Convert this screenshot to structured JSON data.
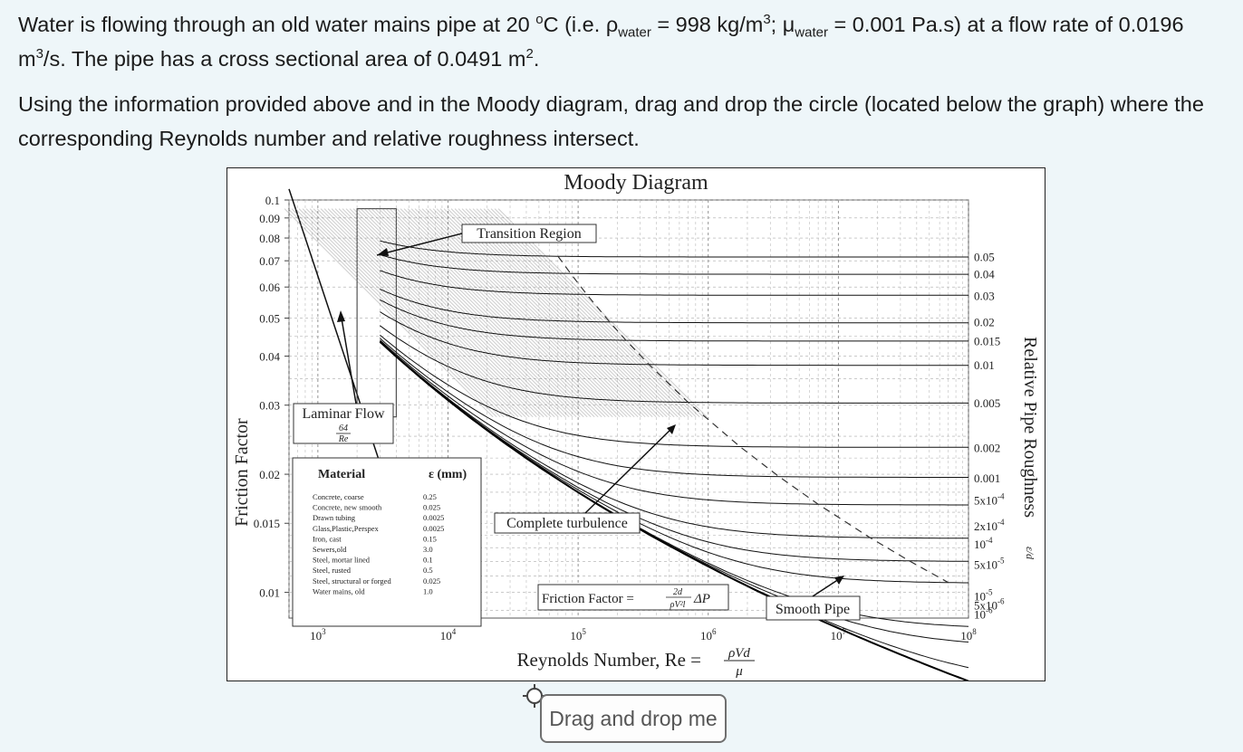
{
  "question": {
    "line1_a": "Water is flowing through an old water mains pipe at 20 ",
    "degree": "o",
    "line1_b": "C (i.e. ρ",
    "sub_water_1": "water",
    "line1_c": " = 998 kg/m",
    "cube_1": "3",
    "line1_d": "; μ",
    "sub_water_2": "water",
    "line1_e": " = 0.001 Pa.s) at a flow rate of 0.0196 m",
    "cube_2": "3",
    "line1_f": "/s. The pipe has a cross sectional area of 0.0491 m",
    "square": "2",
    "line1_g": ".",
    "instructions": "Using the information provided above and in the Moody diagram, drag and drop the circle (located below the graph) where the corresponding Reynolds number and relative roughness intersect."
  },
  "drag_button": {
    "label": "Drag and drop me"
  },
  "icons": {
    "drag_handle": "move-target-icon"
  },
  "chart_data": {
    "type": "line",
    "title": "Moody Diagram",
    "xlabel_text": "Reynolds Number, Re =",
    "xlabel_formula_num": "ρVd",
    "xlabel_formula_den": "μ",
    "ylabel": "Friction Factor",
    "y2label": "Relative Pipe Roughness",
    "y2label_symbol": "ε/d",
    "x_scale": "log",
    "y_scale": "log",
    "xlim": [
      600,
      100000000
    ],
    "ylim": [
      0.0086,
      0.1
    ],
    "x_ticks": [
      {
        "value": 1000,
        "base": "10",
        "exp": "3"
      },
      {
        "value": 10000,
        "base": "10",
        "exp": "4"
      },
      {
        "value": 100000,
        "base": "10",
        "exp": "5"
      },
      {
        "value": 1000000,
        "base": "10",
        "exp": "6"
      },
      {
        "value": 10000000,
        "base": "10",
        "exp": "7"
      },
      {
        "value": 100000000,
        "base": "10",
        "exp": "8"
      }
    ],
    "y_ticks": [
      {
        "value": 0.1,
        "label": "0.1"
      },
      {
        "value": 0.09,
        "label": "0.09"
      },
      {
        "value": 0.08,
        "label": "0.08"
      },
      {
        "value": 0.07,
        "label": "0.07"
      },
      {
        "value": 0.06,
        "label": "0.06"
      },
      {
        "value": 0.05,
        "label": "0.05"
      },
      {
        "value": 0.04,
        "label": "0.04"
      },
      {
        "value": 0.03,
        "label": "0.03"
      },
      {
        "value": 0.02,
        "label": "0.02"
      },
      {
        "value": 0.015,
        "label": "0.015"
      },
      {
        "value": 0.01,
        "label": "0.01"
      }
    ],
    "grid": true,
    "roughness_curves": [
      {
        "label": "0.05",
        "eps": 0.05,
        "y_label_value": 0.0718
      },
      {
        "label": "0.04",
        "eps": 0.04,
        "y_label_value": 0.0649
      },
      {
        "label": "0.03",
        "eps": 0.03,
        "y_label_value": 0.0571
      },
      {
        "label": "0.02",
        "eps": 0.02,
        "y_label_value": 0.049
      },
      {
        "label": "0.015",
        "eps": 0.015,
        "y_label_value": 0.0438
      },
      {
        "label": "0.01",
        "eps": 0.01,
        "y_label_value": 0.038
      },
      {
        "label": "0.005",
        "eps": 0.005,
        "y_label_value": 0.0304
      },
      {
        "label": "0.002",
        "eps": 0.002,
        "y_label_value": 0.0234
      },
      {
        "label": "0.001",
        "eps": 0.001,
        "y_label_value": 0.0196
      },
      {
        "label": "5x10",
        "exp": "-4",
        "eps": 0.0005,
        "y_label_value": 0.0172
      },
      {
        "label": "2x10",
        "exp": "-4",
        "eps": 0.0002,
        "y_label_value": 0.0148
      },
      {
        "label": "10",
        "exp": "-4",
        "eps": 0.0001,
        "y_label_value": 0.0133
      },
      {
        "label": "5x10",
        "exp": "-5",
        "eps": 5e-05,
        "y_label_value": 0.0118
      },
      {
        "label": "10",
        "exp": "-5",
        "eps": 1e-05,
        "y_label_value": 0.0098
      },
      {
        "label": "5x10",
        "exp": "-6",
        "eps": 5e-06,
        "y_label_value": 0.0093
      },
      {
        "label": "10",
        "exp": "-6",
        "eps": 1e-06,
        "y_label_value": 0.0088
      }
    ],
    "laminar": {
      "label": "Laminar Flow",
      "formula_num": "64",
      "formula_den": "Re",
      "re_range": [
        600,
        3000
      ]
    },
    "transition_region": {
      "label": "Transition Region",
      "re_range": [
        2000,
        4000
      ]
    },
    "annotations": {
      "complete_turbulence": "Complete turbulence",
      "friction_factor_prefix": "Friction Factor =",
      "friction_factor_frac_num": "2d",
      "friction_factor_frac_den": "ρV²l",
      "friction_factor_suffix": "ΔP",
      "smooth_pipe": "Smooth Pipe"
    },
    "material_table": {
      "header_material": "Material",
      "header_eps": "ε (mm)",
      "rows": [
        {
          "material": "Concrete, coarse",
          "eps": "0.25"
        },
        {
          "material": "Concrete, new smooth",
          "eps": "0.025"
        },
        {
          "material": "Drawn tubing",
          "eps": "0.0025"
        },
        {
          "material": "Glass,Plastic,Perspex",
          "eps": "0.0025"
        },
        {
          "material": "Iron, cast",
          "eps": "0.15"
        },
        {
          "material": "Sewers,old",
          "eps": "3.0"
        },
        {
          "material": "Steel, mortar lined",
          "eps": "0.1"
        },
        {
          "material": "Steel, rusted",
          "eps": "0.5"
        },
        {
          "material": "Steel, structural or forged",
          "eps": "0.025"
        },
        {
          "material": "Water mains, old",
          "eps": "1.0"
        }
      ]
    }
  }
}
